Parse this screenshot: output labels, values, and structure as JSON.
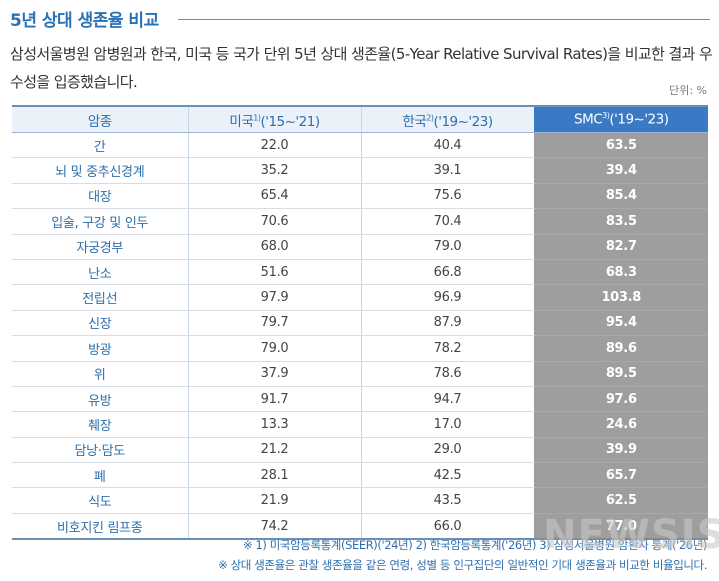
{
  "title": "5년 상대 생존율 비교",
  "description": "삼성서울병원 암병원과 한국, 미국 등 국가 단위 5년 상대 생존율(5-Year Relative Survival Rates)을 비교한 결과 우수성을 입증했습니다.",
  "unit": "단위: %",
  "table": {
    "headers": {
      "cancer": "암종",
      "us": {
        "name": "미국",
        "note": "1)",
        "period": "('15~'21)"
      },
      "korea": {
        "name": "한국",
        "note": "2)",
        "period": "('19~'23)"
      },
      "smc": {
        "name": "SMC",
        "note": "3)",
        "period": "('19~'23)"
      }
    },
    "rows": [
      {
        "cancer": "간",
        "us": "22.0",
        "korea": "40.4",
        "smc": "63.5"
      },
      {
        "cancer": "뇌 및 중추신경계",
        "us": "35.2",
        "korea": "39.1",
        "smc": "39.4"
      },
      {
        "cancer": "대장",
        "us": "65.4",
        "korea": "75.6",
        "smc": "85.4"
      },
      {
        "cancer": "입술, 구강 및 인두",
        "us": "70.6",
        "korea": "70.4",
        "smc": "83.5"
      },
      {
        "cancer": "자궁경부",
        "us": "68.0",
        "korea": "79.0",
        "smc": "82.7"
      },
      {
        "cancer": "난소",
        "us": "51.6",
        "korea": "66.8",
        "smc": "68.3"
      },
      {
        "cancer": "전립선",
        "us": "97.9",
        "korea": "96.9",
        "smc": "103.8"
      },
      {
        "cancer": "신장",
        "us": "79.7",
        "korea": "87.9",
        "smc": "95.4"
      },
      {
        "cancer": "방광",
        "us": "79.0",
        "korea": "78.2",
        "smc": "89.6"
      },
      {
        "cancer": "위",
        "us": "37.9",
        "korea": "78.6",
        "smc": "89.5"
      },
      {
        "cancer": "유방",
        "us": "91.7",
        "korea": "94.7",
        "smc": "97.6"
      },
      {
        "cancer": "췌장",
        "us": "13.3",
        "korea": "17.0",
        "smc": "24.6"
      },
      {
        "cancer": "담낭·담도",
        "us": "21.2",
        "korea": "29.0",
        "smc": "39.9"
      },
      {
        "cancer": "폐",
        "us": "28.1",
        "korea": "42.5",
        "smc": "65.7"
      },
      {
        "cancer": "식도",
        "us": "21.9",
        "korea": "43.5",
        "smc": "62.5"
      },
      {
        "cancer": "비호지킨 림프종",
        "us": "74.2",
        "korea": "66.0",
        "smc": "77.0"
      }
    ]
  },
  "notes": [
    "※ 1) 미국암등록통계(SEER)('24년) 2) 한국암등록통계('26년) 3) 삼성서울병원 암환자 통계('26년)",
    "※ 상대 생존율은 관찰 생존율을 같은 연령, 성별 등 인구집단의 일반적인 기대 생존율과 비교한 비율입니다."
  ],
  "watermark": "NEWSIS",
  "colors": {
    "accent": "#2a72b8",
    "header_bg": "#eaf1f9",
    "smc_header": "#3a7ac4",
    "smc_cell": "#9e9e9e"
  }
}
